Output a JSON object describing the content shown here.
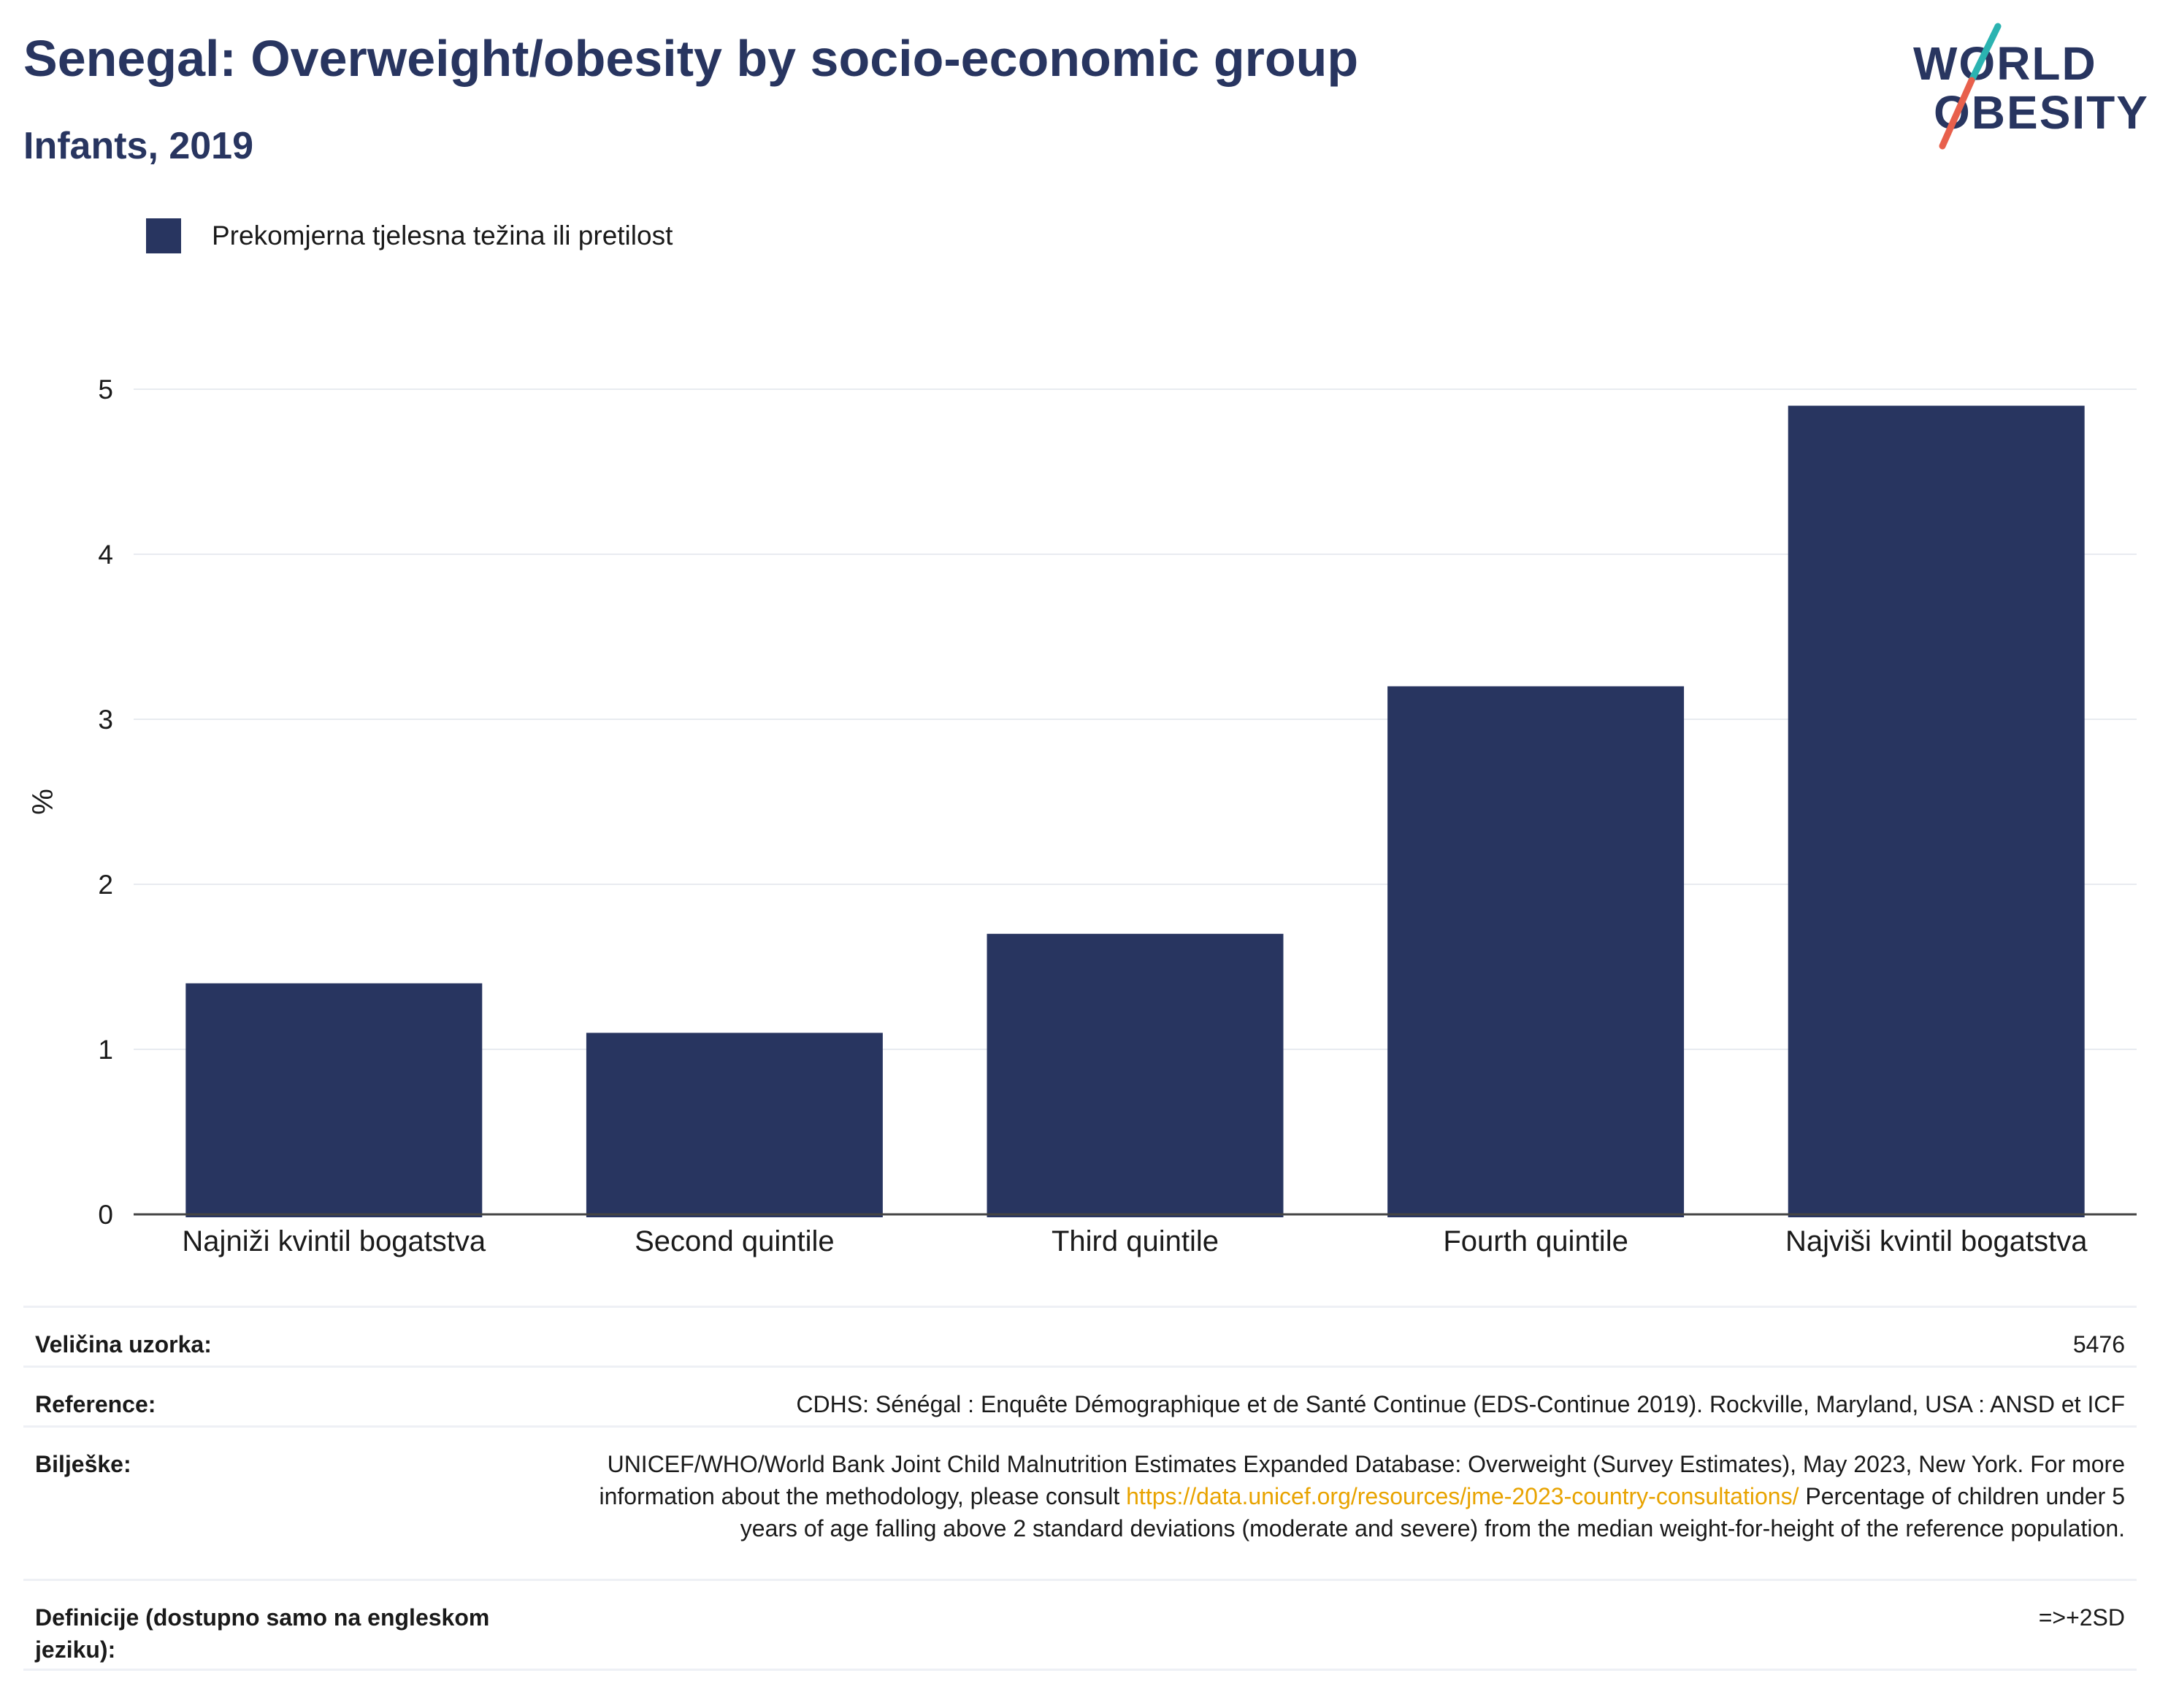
{
  "header": {
    "title": "Senegal: Overweight/obesity by socio-economic group",
    "subtitle": "Infants, 2019"
  },
  "logo": {
    "line1": "WORLD",
    "line2": "OBESITY",
    "accent_teal": "#2bb3b1",
    "accent_red": "#e8604c"
  },
  "legend": {
    "label": "Prekomjerna tjelesna težina ili pretilost",
    "color": "#283560"
  },
  "chart_data": {
    "type": "bar",
    "categories": [
      "Najniži kvintil bogatstva",
      "Second quintile",
      "Third quintile",
      "Fourth quintile",
      "Najviši kvintil bogatstva"
    ],
    "series": [
      {
        "name": "Prekomjerna tjelesna težina ili pretilost",
        "values": [
          1.4,
          1.1,
          1.7,
          3.2,
          4.9
        ],
        "color": "#283560"
      }
    ],
    "ylabel": "%",
    "xlabel": "",
    "ylim": [
      0,
      5.5
    ],
    "yticks": [
      0,
      1,
      2,
      3,
      4,
      5
    ],
    "grid": true
  },
  "info": {
    "sample_label": "Veličina uzorka:",
    "sample_value": "5476",
    "reference_label": "Reference:",
    "reference_value": "CDHS: Sénégal : Enquête Démographique et de Santé Continue (EDS-Continue 2019). Rockville, Maryland, USA : ANSD et ICF",
    "notes_label": "Bilješke:",
    "notes_text1": "UNICEF/WHO/World Bank Joint Child Malnutrition Estimates Expanded Database: Overweight (Survey Estimates), May 2023, New York. For more information about the methodology, please consult",
    "notes_link": "https://data.unicef.org/resources/jme-2023-country-consultations/",
    "notes_text2": "Percentage of children under 5 years of age falling above 2 standard deviations (moderate and severe) from the median weight-for-height of the reference population.",
    "definitions_label": "Definicije (dostupno samo na engleskom jeziku):",
    "definitions_value": "=>+2SD"
  }
}
